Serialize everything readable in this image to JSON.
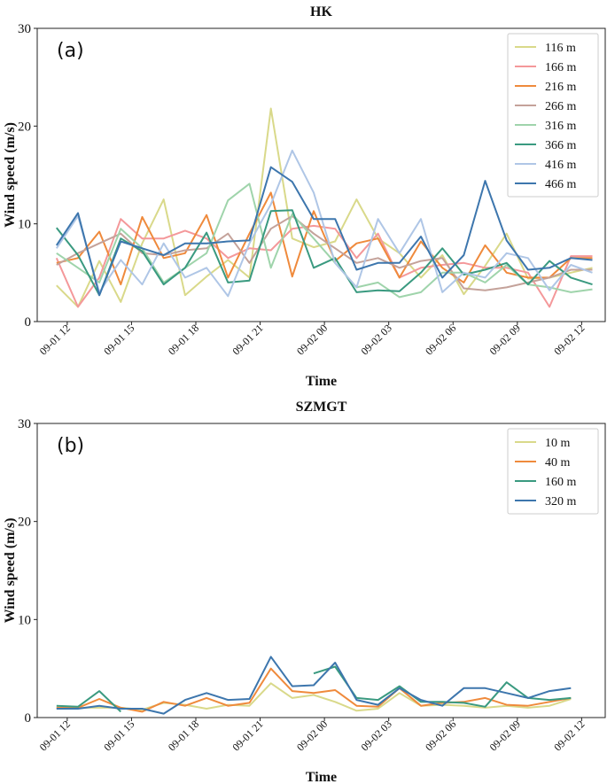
{
  "chart_data": [
    {
      "type": "line",
      "title": "HK",
      "annotation": "(a)",
      "xlabel": "Time",
      "ylabel": "Wind speed (m/s)",
      "legend": "upper right",
      "x": [
        11.5,
        12.5,
        13.5,
        14.5,
        15.5,
        16.5,
        17.5,
        18.5,
        19.5,
        20.5,
        21.5,
        22.5,
        23.5,
        24.5,
        25.5,
        26.5,
        27.5,
        28.5,
        29.5,
        30.5,
        31.5,
        32.5,
        33.5,
        34.5,
        35.5,
        36.5
      ],
      "xlim": [
        10.6,
        37.1
      ],
      "xticks": [
        {
          "value": 12,
          "label": "09-01 12"
        },
        {
          "value": 15,
          "label": "09-01 15"
        },
        {
          "value": 18,
          "label": "09-01 18"
        },
        {
          "value": 21,
          "label": "09-01 21"
        },
        {
          "value": 24,
          "label": "09-02 00"
        },
        {
          "value": 27,
          "label": "09-02 03"
        },
        {
          "value": 30,
          "label": "09-02 06"
        },
        {
          "value": 33,
          "label": "09-02 09"
        },
        {
          "value": 36,
          "label": "09-02 12"
        }
      ],
      "ylim": [
        0,
        30
      ],
      "yticks": [
        0,
        10,
        20,
        30
      ],
      "series": [
        {
          "name": "116 m",
          "color": "#d9d98a",
          "values": [
            3.7,
            1.5,
            6.2,
            2.0,
            8.0,
            12.5,
            2.7,
            4.6,
            6.3,
            4.5,
            21.8,
            8.5,
            7.6,
            8.2,
            12.5,
            8.5,
            7.0,
            4.5,
            6.8,
            2.8,
            5.7,
            9.0,
            4.4,
            4.5,
            5.0,
            5.5
          ]
        },
        {
          "name": "166 m",
          "color": "#f4989a",
          "values": [
            6.5,
            1.5,
            4.5,
            10.5,
            8.5,
            8.5,
            9.3,
            8.5,
            6.5,
            7.5,
            7.3,
            9.5,
            9.8,
            9.5,
            6.5,
            9.0,
            4.5,
            5.5,
            5.8,
            6.0,
            5.5,
            5.5,
            5.0,
            1.5,
            6.7,
            6.7
          ]
        },
        {
          "name": "216 m",
          "color": "#ef8a3c",
          "values": [
            6.0,
            6.5,
            9.2,
            3.8,
            10.7,
            6.5,
            7.0,
            10.9,
            4.5,
            9.0,
            13.2,
            4.6,
            11.3,
            6.2,
            8.0,
            8.5,
            4.5,
            8.2,
            5.5,
            4.0,
            7.8,
            5.0,
            4.5,
            4.5,
            6.5,
            6.5
          ]
        },
        {
          "name": "266 m",
          "color": "#c4a29a",
          "values": [
            5.8,
            7.0,
            8.0,
            9.0,
            7.0,
            6.8,
            7.3,
            7.5,
            9.0,
            6.0,
            9.5,
            10.8,
            9.0,
            7.5,
            6.0,
            6.5,
            5.5,
            6.2,
            6.5,
            3.4,
            3.2,
            3.5,
            4.0,
            4.5,
            5.3,
            5.3
          ]
        },
        {
          "name": "316 m",
          "color": "#9fd4ab",
          "values": [
            7.0,
            5.5,
            4.0,
            9.5,
            7.5,
            4.0,
            5.5,
            7.0,
            12.4,
            14.1,
            5.5,
            11.0,
            8.5,
            6.0,
            3.5,
            4.0,
            2.5,
            3.0,
            5.0,
            5.0,
            4.0,
            5.8,
            3.8,
            3.5,
            3.0,
            3.3
          ]
        },
        {
          "name": "366 m",
          "color": "#3a9a80",
          "values": [
            9.6,
            6.8,
            2.7,
            8.5,
            7.2,
            3.8,
            5.5,
            9.1,
            4.0,
            4.2,
            11.3,
            11.4,
            5.5,
            6.5,
            3.0,
            3.2,
            3.1,
            5.0,
            7.5,
            4.8,
            5.3,
            6.0,
            3.8,
            6.2,
            4.5,
            3.8
          ]
        },
        {
          "name": "416 m",
          "color": "#afc6e6",
          "values": [
            7.5,
            10.8,
            3.0,
            6.3,
            3.8,
            8.0,
            4.5,
            5.5,
            2.6,
            8.0,
            12.0,
            17.5,
            13.2,
            6.0,
            3.5,
            10.5,
            7.0,
            10.5,
            3.0,
            5.0,
            4.5,
            7.0,
            6.5,
            3.2,
            5.8,
            5.0
          ]
        },
        {
          "name": "466 m",
          "color": "#3d76ad",
          "values": [
            7.8,
            11.1,
            2.7,
            8.2,
            7.5,
            6.8,
            8.0,
            8.0,
            8.2,
            8.3,
            15.8,
            14.3,
            10.5,
            10.5,
            5.3,
            6.0,
            6.0,
            8.7,
            4.5,
            6.8,
            14.4,
            8.3,
            5.3,
            5.5,
            6.5,
            6.3
          ]
        }
      ]
    },
    {
      "type": "line",
      "title": "SZMGT",
      "annotation": "(b)",
      "xlabel": "Time",
      "ylabel": "Wind speed (m/s)",
      "legend": "upper right",
      "x": [
        11.5,
        12.5,
        13.5,
        14.5,
        15.5,
        16.5,
        17.5,
        18.5,
        19.5,
        20.5,
        21.5,
        22.5,
        23.5,
        24.5,
        25.5,
        26.5,
        27.5,
        28.5,
        29.5,
        30.5,
        31.5,
        32.5,
        33.5,
        34.5,
        35.5,
        36.5
      ],
      "xlim": [
        10.6,
        37.1
      ],
      "xticks": [
        {
          "value": 12,
          "label": "09-01 12"
        },
        {
          "value": 15,
          "label": "09-01 15"
        },
        {
          "value": 18,
          "label": "09-01 18"
        },
        {
          "value": 21,
          "label": "09-01 21"
        },
        {
          "value": 24,
          "label": "09-02 00"
        },
        {
          "value": 27,
          "label": "09-02 03"
        },
        {
          "value": 30,
          "label": "09-02 06"
        },
        {
          "value": 33,
          "label": "09-02 09"
        },
        {
          "value": 36,
          "label": "09-02 12"
        }
      ],
      "ylim": [
        0,
        30
      ],
      "yticks": [
        0,
        10,
        20,
        30
      ],
      "series": [
        {
          "name": "10 m",
          "color": "#d9d98a",
          "values": [
            1.0,
            1.0,
            1.0,
            1.0,
            0.8,
            1.5,
            1.3,
            0.9,
            1.3,
            1.2,
            3.5,
            2.0,
            2.3,
            1.6,
            0.7,
            0.9,
            2.5,
            1.2,
            1.3,
            1.2,
            1.0,
            1.2,
            1.0,
            1.2,
            1.9,
            null
          ]
        },
        {
          "name": "40 m",
          "color": "#ef8a3c",
          "values": [
            1.0,
            1.0,
            1.9,
            1.0,
            0.6,
            1.6,
            1.2,
            2.0,
            1.2,
            1.5,
            5.0,
            2.7,
            2.5,
            2.8,
            1.2,
            1.1,
            3.0,
            1.2,
            1.5,
            1.6,
            2.0,
            1.3,
            1.2,
            1.6,
            2.0,
            null
          ]
        },
        {
          "name": "160 m",
          "color": "#3a9a80",
          "values": [
            1.2,
            1.1,
            2.7,
            0.6,
            null,
            null,
            null,
            null,
            null,
            null,
            null,
            null,
            4.5,
            5.2,
            2.0,
            1.8,
            3.2,
            1.6,
            1.6,
            1.5,
            1.1,
            3.6,
            2.0,
            1.8,
            2.0,
            null
          ]
        },
        {
          "name": "320 m",
          "color": "#3d76ad",
          "values": [
            0.9,
            0.9,
            1.2,
            0.9,
            0.9,
            0.4,
            1.8,
            2.5,
            1.8,
            1.9,
            6.2,
            3.2,
            3.3,
            5.6,
            1.8,
            1.3,
            3.0,
            1.8,
            1.2,
            3.0,
            3.0,
            2.5,
            2.0,
            2.7,
            3.0,
            null
          ]
        }
      ]
    }
  ]
}
